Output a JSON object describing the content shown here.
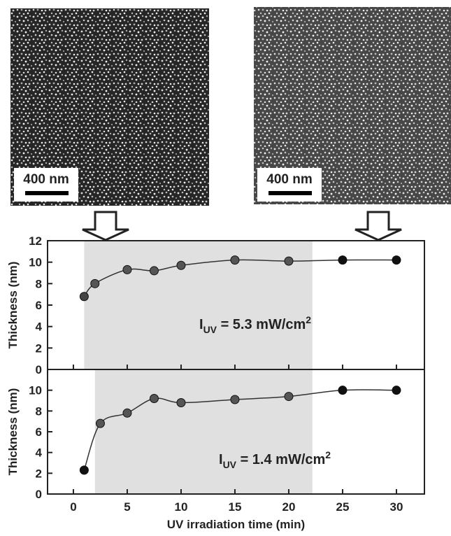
{
  "images": [
    {
      "scale_label": "400 nm"
    },
    {
      "scale_label": "400 nm"
    }
  ],
  "chart_data": [
    {
      "type": "line",
      "ylabel": "Thickness (nm)",
      "annotation": {
        "main": "I",
        "sub": "UV",
        "text": " = 5.3 mW/cm",
        "sup": "2"
      },
      "shaded_x": [
        1,
        22.2
      ],
      "x": [
        1,
        2,
        5,
        7.5,
        10,
        15,
        20,
        25,
        30
      ],
      "series": [
        {
          "color": "#333",
          "values": [
            6.8,
            8.0,
            9.3,
            9.2,
            9.7,
            10.2,
            10.1,
            10.2,
            10.2
          ],
          "marker_colors": [
            "#444",
            "#555",
            "#555",
            "#555",
            "#555",
            "#555",
            "#555",
            "#111",
            "#111"
          ]
        }
      ],
      "xlim": [
        -2.4,
        32.6
      ],
      "xticks": [
        0,
        5,
        10,
        15,
        20,
        25,
        30
      ],
      "ylim": [
        0,
        12
      ],
      "yticks": [
        0,
        2,
        4,
        6,
        8,
        10,
        12
      ]
    },
    {
      "type": "line",
      "ylabel": "Thickness (nm)",
      "xlabel": "UV irradiation time (min)",
      "annotation": {
        "main": "I",
        "sub": "UV",
        "text": " = 1.4 mW/cm",
        "sup": "2"
      },
      "shaded_x": [
        2,
        22.2
      ],
      "x": [
        1,
        2.5,
        5,
        7.5,
        10,
        15,
        20,
        25,
        30
      ],
      "series": [
        {
          "color": "#333",
          "values": [
            2.3,
            6.8,
            7.8,
            9.2,
            8.8,
            9.1,
            9.4,
            10,
            10
          ],
          "marker_colors": [
            "#111",
            "#555",
            "#555",
            "#555",
            "#555",
            "#555",
            "#555",
            "#111",
            "#111"
          ]
        }
      ],
      "xlim": [
        -2.4,
        32.6
      ],
      "xticks": [
        0,
        5,
        10,
        15,
        20,
        25,
        30
      ],
      "ylim": [
        0,
        12
      ],
      "yticks": [
        0,
        2,
        4,
        6,
        8,
        10
      ]
    }
  ]
}
